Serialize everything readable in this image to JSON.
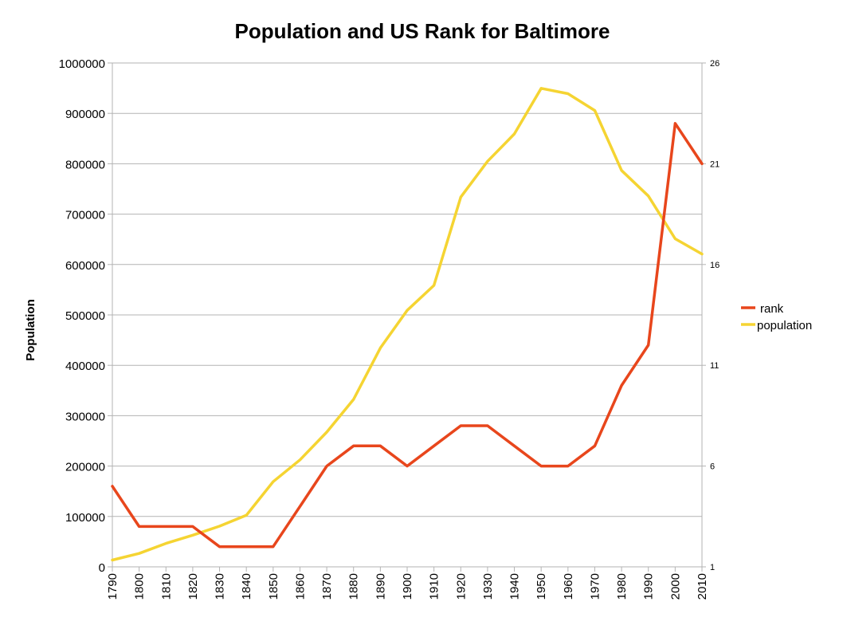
{
  "chart_data": {
    "type": "line",
    "title": "Population and US Rank for Baltimore",
    "xlabel": "",
    "ylabel": "Population",
    "y2label": "",
    "ylim": [
      0,
      1000000
    ],
    "y2lim": [
      1,
      26
    ],
    "grid": true,
    "legend_position": "right",
    "x": [
      "1790",
      "1800",
      "1810",
      "1820",
      "1830",
      "1840",
      "1850",
      "1860",
      "1870",
      "1880",
      "1890",
      "1900",
      "1910",
      "1920",
      "1930",
      "1940",
      "1950",
      "1960",
      "1970",
      "1980",
      "1990",
      "2000",
      "2010"
    ],
    "y_ticks": [
      "0",
      "100000",
      "200000",
      "300000",
      "400000",
      "500000",
      "600000",
      "700000",
      "800000",
      "900000",
      "1000000"
    ],
    "y2_ticks": [
      "1",
      "6",
      "11",
      "16",
      "21",
      "26"
    ],
    "series": [
      {
        "name": "rank",
        "axis": "right",
        "color": "#e8461c",
        "values": [
          5,
          3,
          3,
          3,
          2,
          2,
          2,
          4,
          6,
          7,
          7,
          6,
          7,
          8,
          8,
          7,
          6,
          6,
          7,
          10,
          12,
          23,
          21
        ]
      },
      {
        "name": "population",
        "axis": "left",
        "color": "#f5d432",
        "values": [
          13503,
          26514,
          46555,
          62738,
          80620,
          102313,
          169054,
          212418,
          267354,
          332313,
          434439,
          508957,
          558485,
          733826,
          804874,
          859100,
          949708,
          939024,
          905759,
          786775,
          736014,
          651154,
          620961
        ]
      }
    ]
  }
}
